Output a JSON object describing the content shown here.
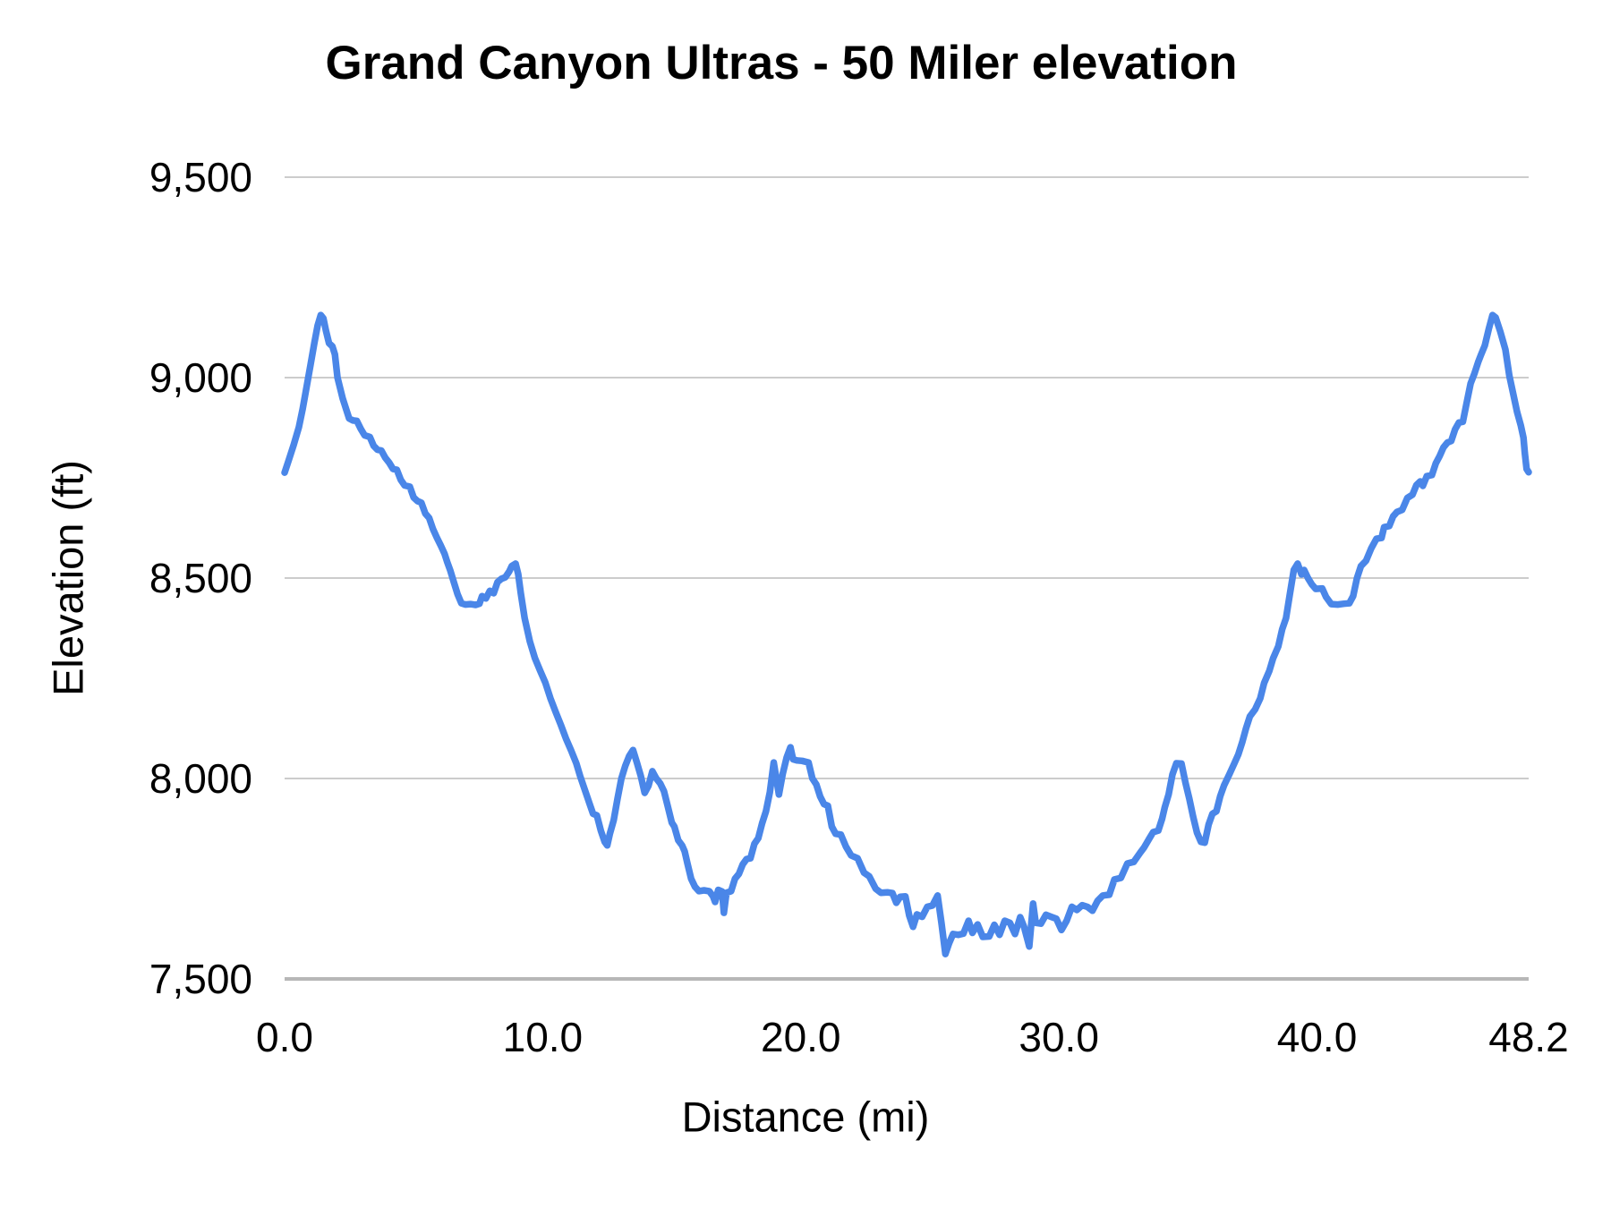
{
  "chart_data": {
    "type": "line",
    "title": "Grand Canyon Ultras - 50 Miler elevation",
    "xlabel": "Distance (mi)",
    "ylabel": "Elevation (ft)",
    "xlim": [
      0,
      48.2
    ],
    "ylim": [
      7500,
      9500
    ],
    "grid": "horizontal-only",
    "legend": "none",
    "line_color": "#4a86e8",
    "gridline_color": "#cccccc",
    "axis_line_color": "#b7b7b7",
    "text_color": "#000000",
    "x_ticks": [
      {
        "label": "0.0",
        "value": 0
      },
      {
        "label": "10.0",
        "value": 10
      },
      {
        "label": "20.0",
        "value": 20
      },
      {
        "label": "30.0",
        "value": 30
      },
      {
        "label": "40.0",
        "value": 40
      },
      {
        "label": "48.2",
        "value": 48.2
      }
    ],
    "y_ticks": [
      {
        "label": "9,500",
        "value": 9500
      },
      {
        "label": "9,000",
        "value": 9000
      },
      {
        "label": "8,500",
        "value": 8500
      },
      {
        "label": "8,000",
        "value": 8000
      },
      {
        "label": "7,500",
        "value": 7500
      }
    ],
    "series": [
      {
        "name": "elevation",
        "points": [
          [
            0,
            8763
          ],
          [
            0.15,
            8792
          ],
          [
            0.35,
            8832
          ],
          [
            0.55,
            8876
          ],
          [
            0.7,
            8922
          ],
          [
            0.85,
            8976
          ],
          [
            1,
            9030
          ],
          [
            1.15,
            9086
          ],
          [
            1.28,
            9130
          ],
          [
            1.4,
            9156
          ],
          [
            1.5,
            9148
          ],
          [
            1.6,
            9118
          ],
          [
            1.72,
            9086
          ],
          [
            1.85,
            9078
          ],
          [
            1.95,
            9058
          ],
          [
            2.05,
            9000
          ],
          [
            2.15,
            8974
          ],
          [
            2.25,
            8948
          ],
          [
            2.4,
            8918
          ],
          [
            2.5,
            8898
          ],
          [
            2.65,
            8893
          ],
          [
            2.8,
            8892
          ],
          [
            2.95,
            8872
          ],
          [
            3.1,
            8856
          ],
          [
            3.3,
            8852
          ],
          [
            3.45,
            8830
          ],
          [
            3.6,
            8820
          ],
          [
            3.75,
            8818
          ],
          [
            3.9,
            8800
          ],
          [
            4.05,
            8788
          ],
          [
            4.2,
            8772
          ],
          [
            4.35,
            8770
          ],
          [
            4.5,
            8745
          ],
          [
            4.65,
            8731
          ],
          [
            4.85,
            8728
          ],
          [
            5,
            8701
          ],
          [
            5.15,
            8692
          ],
          [
            5.3,
            8688
          ],
          [
            5.45,
            8661
          ],
          [
            5.6,
            8650
          ],
          [
            5.75,
            8622
          ],
          [
            5.9,
            8601
          ],
          [
            6.05,
            8581
          ],
          [
            6.2,
            8560
          ],
          [
            6.3,
            8540
          ],
          [
            6.42,
            8519
          ],
          [
            6.55,
            8491
          ],
          [
            6.7,
            8460
          ],
          [
            6.85,
            8437
          ],
          [
            7,
            8434
          ],
          [
            7.2,
            8435
          ],
          [
            7.4,
            8433
          ],
          [
            7.55,
            8436
          ],
          [
            7.65,
            8455
          ],
          [
            7.8,
            8449
          ],
          [
            7.95,
            8468
          ],
          [
            8.1,
            8462
          ],
          [
            8.25,
            8490
          ],
          [
            8.4,
            8498
          ],
          [
            8.55,
            8502
          ],
          [
            8.7,
            8516
          ],
          [
            8.8,
            8530
          ],
          [
            8.95,
            8536
          ],
          [
            9.05,
            8510
          ],
          [
            9.15,
            8462
          ],
          [
            9.3,
            8400
          ],
          [
            9.5,
            8342
          ],
          [
            9.7,
            8300
          ],
          [
            9.9,
            8269
          ],
          [
            10.1,
            8239
          ],
          [
            10.3,
            8200
          ],
          [
            10.5,
            8166
          ],
          [
            10.7,
            8134
          ],
          [
            10.9,
            8100
          ],
          [
            11.1,
            8070
          ],
          [
            11.3,
            8038
          ],
          [
            11.45,
            8006
          ],
          [
            11.6,
            7978
          ],
          [
            11.8,
            7940
          ],
          [
            11.95,
            7912
          ],
          [
            12.1,
            7908
          ],
          [
            12.25,
            7870
          ],
          [
            12.4,
            7842
          ],
          [
            12.5,
            7833
          ],
          [
            12.6,
            7862
          ],
          [
            12.75,
            7896
          ],
          [
            12.9,
            7950
          ],
          [
            13.05,
            8000
          ],
          [
            13.2,
            8032
          ],
          [
            13.35,
            8056
          ],
          [
            13.5,
            8071
          ],
          [
            13.65,
            8040
          ],
          [
            13.8,
            8006
          ],
          [
            13.95,
            7964
          ],
          [
            14.1,
            7982
          ],
          [
            14.25,
            8018
          ],
          [
            14.4,
            8000
          ],
          [
            14.55,
            7988
          ],
          [
            14.7,
            7968
          ],
          [
            14.85,
            7930
          ],
          [
            15,
            7890
          ],
          [
            15.1,
            7880
          ],
          [
            15.25,
            7846
          ],
          [
            15.4,
            7833
          ],
          [
            15.5,
            7818
          ],
          [
            15.6,
            7790
          ],
          [
            15.75,
            7750
          ],
          [
            15.9,
            7730
          ],
          [
            16.05,
            7719
          ],
          [
            16.25,
            7721
          ],
          [
            16.45,
            7719
          ],
          [
            16.6,
            7706
          ],
          [
            16.68,
            7692
          ],
          [
            16.8,
            7722
          ],
          [
            16.95,
            7718
          ],
          [
            17.02,
            7665
          ],
          [
            17.12,
            7715
          ],
          [
            17.3,
            7719
          ],
          [
            17.45,
            7750
          ],
          [
            17.6,
            7762
          ],
          [
            17.75,
            7786
          ],
          [
            17.9,
            7799
          ],
          [
            18.05,
            7801
          ],
          [
            18.2,
            7837
          ],
          [
            18.35,
            7851
          ],
          [
            18.5,
            7888
          ],
          [
            18.65,
            7918
          ],
          [
            18.8,
            7966
          ],
          [
            18.95,
            8040
          ],
          [
            19.05,
            8000
          ],
          [
            19.15,
            7960
          ],
          [
            19.3,
            8012
          ],
          [
            19.45,
            8052
          ],
          [
            19.6,
            8078
          ],
          [
            19.7,
            8048
          ],
          [
            19.85,
            8045
          ],
          [
            20.05,
            8044
          ],
          [
            20.3,
            8040
          ],
          [
            20.45,
            8000
          ],
          [
            20.6,
            7985
          ],
          [
            20.75,
            7955
          ],
          [
            20.9,
            7936
          ],
          [
            21.05,
            7932
          ],
          [
            21.2,
            7880
          ],
          [
            21.35,
            7862
          ],
          [
            21.55,
            7860
          ],
          [
            21.75,
            7830
          ],
          [
            21.95,
            7808
          ],
          [
            22.2,
            7801
          ],
          [
            22.45,
            7765
          ],
          [
            22.65,
            7756
          ],
          [
            22.9,
            7725
          ],
          [
            23.1,
            7715
          ],
          [
            23.35,
            7716
          ],
          [
            23.55,
            7714
          ],
          [
            23.7,
            7690
          ],
          [
            23.85,
            7705
          ],
          [
            24.05,
            7706
          ],
          [
            24.2,
            7658
          ],
          [
            24.35,
            7630
          ],
          [
            24.5,
            7661
          ],
          [
            24.7,
            7655
          ],
          [
            24.9,
            7680
          ],
          [
            25.1,
            7683
          ],
          [
            25.3,
            7708
          ],
          [
            25.45,
            7640
          ],
          [
            25.6,
            7562
          ],
          [
            25.75,
            7590
          ],
          [
            25.9,
            7612
          ],
          [
            26.1,
            7610
          ],
          [
            26.3,
            7613
          ],
          [
            26.5,
            7645
          ],
          [
            26.65,
            7615
          ],
          [
            26.85,
            7636
          ],
          [
            27.05,
            7605
          ],
          [
            27.3,
            7606
          ],
          [
            27.5,
            7635
          ],
          [
            27.7,
            7610
          ],
          [
            27.9,
            7645
          ],
          [
            28.1,
            7640
          ],
          [
            28.3,
            7612
          ],
          [
            28.5,
            7654
          ],
          [
            28.65,
            7630
          ],
          [
            28.85,
            7581
          ],
          [
            29,
            7688
          ],
          [
            29.1,
            7640
          ],
          [
            29.3,
            7638
          ],
          [
            29.5,
            7660
          ],
          [
            29.7,
            7655
          ],
          [
            29.9,
            7650
          ],
          [
            30.1,
            7622
          ],
          [
            30.3,
            7645
          ],
          [
            30.5,
            7680
          ],
          [
            30.7,
            7672
          ],
          [
            30.9,
            7684
          ],
          [
            31.1,
            7680
          ],
          [
            31.3,
            7670
          ],
          [
            31.5,
            7695
          ],
          [
            31.7,
            7708
          ],
          [
            31.95,
            7710
          ],
          [
            32.15,
            7748
          ],
          [
            32.4,
            7752
          ],
          [
            32.65,
            7788
          ],
          [
            32.9,
            7792
          ],
          [
            33.15,
            7815
          ],
          [
            33.3,
            7828
          ],
          [
            33.5,
            7850
          ],
          [
            33.65,
            7866
          ],
          [
            33.85,
            7870
          ],
          [
            34,
            7900
          ],
          [
            34.1,
            7928
          ],
          [
            34.25,
            7960
          ],
          [
            34.4,
            8010
          ],
          [
            34.55,
            8038
          ],
          [
            34.75,
            8037
          ],
          [
            34.9,
            7990
          ],
          [
            35.05,
            7950
          ],
          [
            35.2,
            7905
          ],
          [
            35.35,
            7865
          ],
          [
            35.5,
            7842
          ],
          [
            35.65,
            7840
          ],
          [
            35.8,
            7885
          ],
          [
            35.95,
            7912
          ],
          [
            36.1,
            7918
          ],
          [
            36.25,
            7956
          ],
          [
            36.4,
            7983
          ],
          [
            36.6,
            8010
          ],
          [
            36.8,
            8038
          ],
          [
            36.95,
            8060
          ],
          [
            37.1,
            8090
          ],
          [
            37.25,
            8125
          ],
          [
            37.4,
            8155
          ],
          [
            37.6,
            8172
          ],
          [
            37.8,
            8200
          ],
          [
            37.95,
            8238
          ],
          [
            38.15,
            8268
          ],
          [
            38.3,
            8300
          ],
          [
            38.5,
            8330
          ],
          [
            38.65,
            8372
          ],
          [
            38.8,
            8400
          ],
          [
            38.95,
            8460
          ],
          [
            39.1,
            8520
          ],
          [
            39.25,
            8536
          ],
          [
            39.4,
            8509
          ],
          [
            39.5,
            8520
          ],
          [
            39.65,
            8500
          ],
          [
            39.8,
            8484
          ],
          [
            39.95,
            8473
          ],
          [
            40.2,
            8474
          ],
          [
            40.35,
            8453
          ],
          [
            40.55,
            8435
          ],
          [
            40.8,
            8434
          ],
          [
            41.05,
            8436
          ],
          [
            41.25,
            8437
          ],
          [
            41.4,
            8455
          ],
          [
            41.55,
            8500
          ],
          [
            41.7,
            8530
          ],
          [
            41.9,
            8543
          ],
          [
            42.1,
            8574
          ],
          [
            42.3,
            8598
          ],
          [
            42.5,
            8600
          ],
          [
            42.6,
            8627
          ],
          [
            42.8,
            8630
          ],
          [
            42.95,
            8654
          ],
          [
            43.1,
            8665
          ],
          [
            43.3,
            8670
          ],
          [
            43.5,
            8700
          ],
          [
            43.7,
            8708
          ],
          [
            43.85,
            8732
          ],
          [
            44,
            8741
          ],
          [
            44.1,
            8730
          ],
          [
            44.25,
            8754
          ],
          [
            44.45,
            8757
          ],
          [
            44.6,
            8786
          ],
          [
            44.75,
            8804
          ],
          [
            44.9,
            8826
          ],
          [
            45.05,
            8838
          ],
          [
            45.2,
            8842
          ],
          [
            45.35,
            8871
          ],
          [
            45.5,
            8888
          ],
          [
            45.65,
            8890
          ],
          [
            45.8,
            8938
          ],
          [
            45.95,
            8985
          ],
          [
            46.1,
            9010
          ],
          [
            46.25,
            9040
          ],
          [
            46.35,
            9056
          ],
          [
            46.5,
            9080
          ],
          [
            46.65,
            9120
          ],
          [
            46.8,
            9156
          ],
          [
            46.92,
            9150
          ],
          [
            47.1,
            9115
          ],
          [
            47.3,
            9070
          ],
          [
            47.45,
            9005
          ],
          [
            47.6,
            8960
          ],
          [
            47.75,
            8915
          ],
          [
            47.9,
            8880
          ],
          [
            48,
            8850
          ],
          [
            48.05,
            8812
          ],
          [
            48.12,
            8772
          ],
          [
            48.2,
            8764
          ]
        ]
      }
    ]
  }
}
